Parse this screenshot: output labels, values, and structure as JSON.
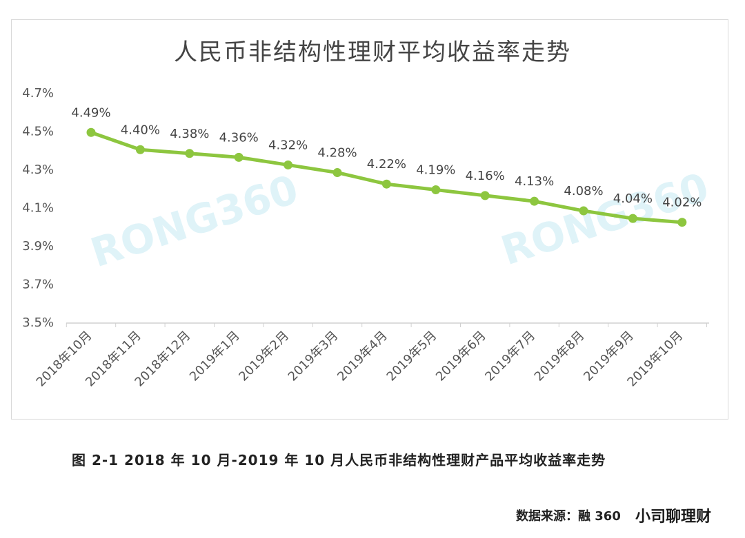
{
  "chart_data": {
    "type": "line",
    "title": "人民币非结构性理财平均收益率走势",
    "categories": [
      "2018年10月",
      "2018年11月",
      "2018年12月",
      "2019年1月",
      "2019年2月",
      "2019年3月",
      "2019年4月",
      "2019年5月",
      "2019年6月",
      "2019年7月",
      "2019年8月",
      "2019年9月",
      "2019年10月"
    ],
    "values": [
      4.49,
      4.4,
      4.38,
      4.36,
      4.32,
      4.28,
      4.22,
      4.19,
      4.16,
      4.13,
      4.08,
      4.04,
      4.02
    ],
    "data_labels": [
      "4.49%",
      "4.40%",
      "4.38%",
      "4.36%",
      "4.32%",
      "4.28%",
      "4.22%",
      "4.19%",
      "4.16%",
      "4.13%",
      "4.08%",
      "4.04%",
      "4.02%"
    ],
    "y_ticks": [
      3.5,
      3.7,
      3.9,
      4.1,
      4.3,
      4.5,
      4.7
    ],
    "y_tick_labels": [
      "3.5%",
      "3.7%",
      "3.9%",
      "4.1%",
      "4.3%",
      "4.5%",
      "4.7%"
    ],
    "ylim": [
      3.5,
      4.7
    ],
    "grid": false,
    "line_color": "#8dc63f",
    "watermark": "RONG360"
  },
  "caption": "图 2-1 2018 年 10 月-2019 年 10 月人民币非结构性理财产品平均收益率走势",
  "source": "数据来源：融 360",
  "brand_watermark": "小司聊理财"
}
